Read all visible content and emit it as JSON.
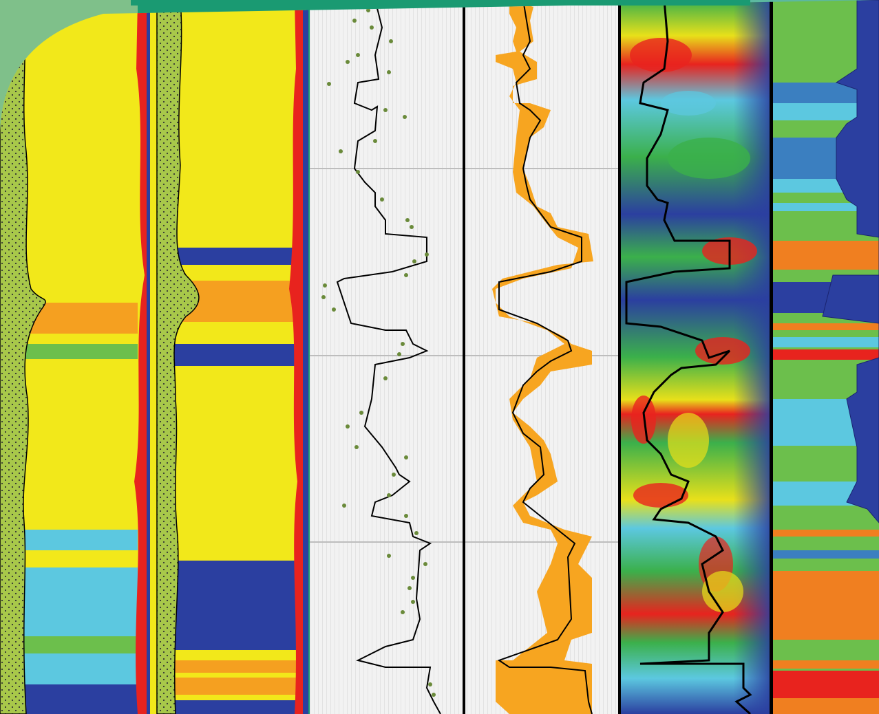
{
  "figure": {
    "description_free": true,
    "colors": {
      "background_green": "#1a9a72",
      "corner_panel": "#7fc08a",
      "sand_yellow": "#f2e81a",
      "shale_green_pattern": "#a8c84a",
      "orange": "#f5a020",
      "red": "#e8231e",
      "dark_blue": "#2b3fa0",
      "light_blue": "#5cc8e0",
      "medium_green": "#6cbf4c",
      "log_orange": "#f7a520",
      "curve_black": "#000000",
      "scatter_dot": "#6a8a3a",
      "grid_line": "#bdbdbd"
    },
    "tracks": [
      {
        "id": "lithology-1",
        "kind": "facies-column"
      },
      {
        "id": "lithology-2",
        "kind": "facies-column"
      },
      {
        "id": "log-curve",
        "kind": "curve-with-scatter"
      },
      {
        "id": "log-uncertainty",
        "kind": "curve-with-band"
      },
      {
        "id": "probability-heatmap",
        "kind": "heatmap"
      },
      {
        "id": "facies-bar",
        "kind": "facies-column"
      }
    ]
  }
}
